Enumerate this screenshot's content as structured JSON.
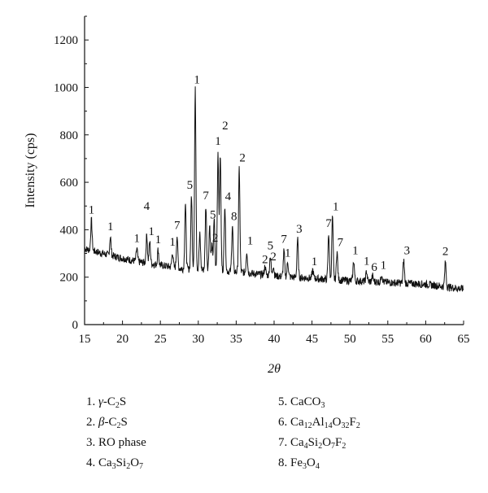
{
  "chart_data": {
    "type": "line",
    "xlabel": "2θ",
    "ylabel": "Intensity (cps)",
    "xlim": [
      15,
      65
    ],
    "ylim": [
      0,
      1300
    ],
    "xticks": [
      15,
      20,
      25,
      30,
      35,
      40,
      45,
      50,
      55,
      60,
      65
    ],
    "yticks": [
      0,
      200,
      400,
      600,
      800,
      1000,
      1200
    ],
    "grid": false,
    "baseline": [
      [
        15,
        320
      ],
      [
        18,
        295
      ],
      [
        22,
        265
      ],
      [
        26,
        245
      ],
      [
        28,
        235
      ],
      [
        32,
        230
      ],
      [
        36,
        220
      ],
      [
        40,
        205
      ],
      [
        45,
        195
      ],
      [
        50,
        185
      ],
      [
        55,
        178
      ],
      [
        60,
        170
      ],
      [
        65,
        150
      ]
    ],
    "peaks": [
      {
        "x": 15.9,
        "y": 440,
        "label": "1"
      },
      {
        "x": 18.4,
        "y": 370,
        "label": "1"
      },
      {
        "x": 21.9,
        "y": 320,
        "label": "1"
      },
      {
        "x": 23.2,
        "y": 380,
        "label": "4"
      },
      {
        "x": 23.6,
        "y": 350,
        "label": "1"
      },
      {
        "x": 24.7,
        "y": 315,
        "label": "1"
      },
      {
        "x": 26.6,
        "y": 305,
        "label": "1"
      },
      {
        "x": 27.2,
        "y": 375,
        "label": "7"
      },
      {
        "x": 28.3,
        "y": 510,
        "label": ""
      },
      {
        "x": 29.1,
        "y": 545,
        "label": "5"
      },
      {
        "x": 29.6,
        "y": 990,
        "label": "1"
      },
      {
        "x": 30.2,
        "y": 380,
        "label": ""
      },
      {
        "x": 31.0,
        "y": 500,
        "label": "7"
      },
      {
        "x": 31.5,
        "y": 420,
        "label": "5"
      },
      {
        "x": 31.8,
        "y": 330,
        "label": "2"
      },
      {
        "x": 32.1,
        "y": 440,
        "label": ""
      },
      {
        "x": 32.6,
        "y": 730,
        "label": "1"
      },
      {
        "x": 32.9,
        "y": 720,
        "label": "2"
      },
      {
        "x": 33.5,
        "y": 505,
        "label": "4"
      },
      {
        "x": 34.5,
        "y": 420,
        "label": "8"
      },
      {
        "x": 35.4,
        "y": 660,
        "label": "2"
      },
      {
        "x": 36.4,
        "y": 310,
        "label": "1"
      },
      {
        "x": 38.8,
        "y": 245,
        "label": "2"
      },
      {
        "x": 39.5,
        "y": 290,
        "label": "5"
      },
      {
        "x": 39.9,
        "y": 250,
        "label": "2"
      },
      {
        "x": 41.3,
        "y": 310,
        "label": "7"
      },
      {
        "x": 41.8,
        "y": 265,
        "label": "1"
      },
      {
        "x": 43.1,
        "y": 360,
        "label": "3"
      },
      {
        "x": 45.1,
        "y": 230,
        "label": "1"
      },
      {
        "x": 47.2,
        "y": 385,
        "label": "7"
      },
      {
        "x": 47.7,
        "y": 455,
        "label": "1"
      },
      {
        "x": 48.3,
        "y": 310,
        "label": "7"
      },
      {
        "x": 50.5,
        "y": 270,
        "label": "1"
      },
      {
        "x": 52.2,
        "y": 225,
        "label": "1"
      },
      {
        "x": 53.0,
        "y": 205,
        "label": "6"
      },
      {
        "x": 54.2,
        "y": 215,
        "label": "1"
      },
      {
        "x": 57.1,
        "y": 270,
        "label": "3"
      },
      {
        "x": 62.6,
        "y": 265,
        "label": "2"
      }
    ],
    "label_offsets": {
      "15.9": [
        0,
        -8
      ],
      "18.4": [
        0,
        -8
      ],
      "21.9": [
        0,
        -8
      ],
      "23.2": [
        0,
        -30
      ],
      "23.6": [
        2,
        -8
      ],
      "24.7": [
        0,
        -8
      ],
      "26.6": [
        0,
        -8
      ],
      "27.2": [
        0,
        -8
      ],
      "29.1": [
        -2,
        -8
      ],
      "29.6": [
        2,
        -8
      ],
      "31.0": [
        0,
        -8
      ],
      "31.5": [
        4,
        -8
      ],
      "31.8": [
        4,
        -6
      ],
      "32.6": [
        0,
        -8
      ],
      "32.9": [
        6,
        -30
      ],
      "33.5": [
        4,
        -6
      ],
      "34.5": [
        2,
        -6
      ],
      "35.4": [
        4,
        -8
      ],
      "36.4": [
        4,
        -8
      ],
      "38.8": [
        0,
        -4
      ],
      "39.5": [
        0,
        -8
      ],
      "39.9": [
        0,
        -6
      ],
      "41.3": [
        0,
        -10
      ],
      "41.8": [
        0,
        -6
      ],
      "43.1": [
        2,
        -8
      ],
      "45.1": [
        2,
        -6
      ],
      "47.7": [
        4,
        -8
      ],
      "48.3": [
        4,
        -6
      ],
      "50.5": [
        2,
        -8
      ],
      "52.2": [
        0,
        -8
      ],
      "53.0": [
        2,
        -6
      ],
      "54.2": [
        2,
        -6
      ],
      "57.1": [
        4,
        -8
      ],
      "62.6": [
        0,
        -8
      ]
    }
  },
  "legend": {
    "items": [
      {
        "num": "1.",
        "parts": [
          [
            "γ",
            "i"
          ],
          [
            "-C",
            ""
          ],
          [
            "2",
            "sub"
          ],
          [
            "S",
            ""
          ]
        ]
      },
      {
        "num": "2.",
        "parts": [
          [
            "β",
            "i"
          ],
          [
            "-C",
            ""
          ],
          [
            "2",
            "sub"
          ],
          [
            "S",
            ""
          ]
        ]
      },
      {
        "num": "3.",
        "parts": [
          [
            "RO phase",
            ""
          ]
        ]
      },
      {
        "num": "4.",
        "parts": [
          [
            "Ca",
            ""
          ],
          [
            "3",
            "sub"
          ],
          [
            "Si",
            ""
          ],
          [
            "2",
            "sub"
          ],
          [
            "O",
            ""
          ],
          [
            "7",
            "sub"
          ]
        ]
      },
      {
        "num": "5.",
        "parts": [
          [
            "CaCO",
            ""
          ],
          [
            "3",
            "sub"
          ]
        ]
      },
      {
        "num": "6.",
        "parts": [
          [
            "Ca",
            ""
          ],
          [
            "12",
            "sub"
          ],
          [
            "Al",
            ""
          ],
          [
            "14",
            "sub"
          ],
          [
            "O",
            ""
          ],
          [
            "32",
            "sub"
          ],
          [
            "F",
            ""
          ],
          [
            "2",
            "sub"
          ]
        ]
      },
      {
        "num": "7.",
        "parts": [
          [
            "Ca",
            ""
          ],
          [
            "4",
            "sub"
          ],
          [
            "Si",
            ""
          ],
          [
            "2",
            "sub"
          ],
          [
            "O",
            ""
          ],
          [
            "7",
            "sub"
          ],
          [
            "F",
            ""
          ],
          [
            "2",
            "sub"
          ]
        ]
      },
      {
        "num": "8.",
        "parts": [
          [
            "Fe",
            ""
          ],
          [
            "3",
            "sub"
          ],
          [
            "O",
            ""
          ],
          [
            "4",
            "sub"
          ]
        ]
      }
    ]
  }
}
